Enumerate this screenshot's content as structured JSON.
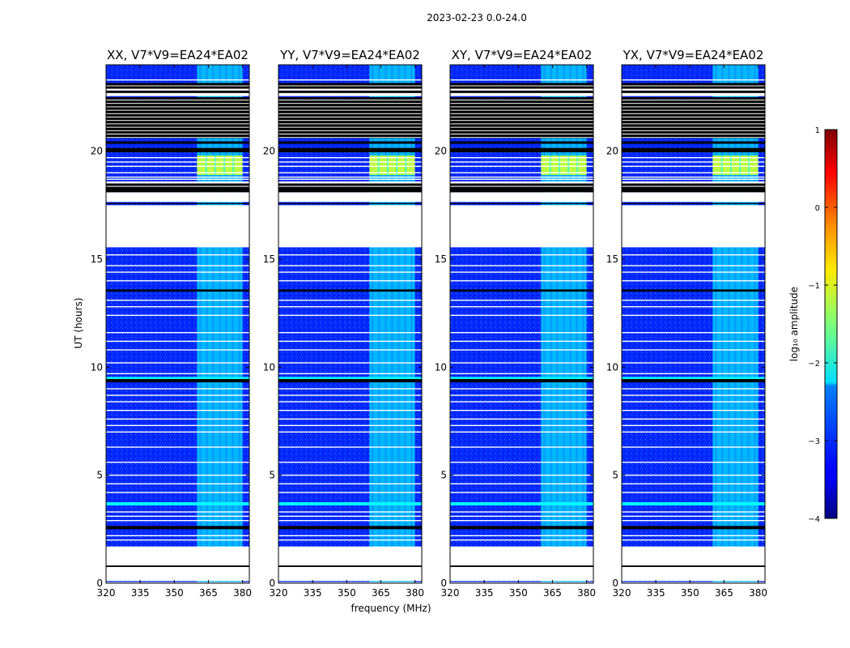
{
  "suptitle": "2023-02-23 0.0-24.0",
  "chart_data": {
    "type": "heatmap",
    "panels": [
      {
        "title": "XX, V7*V9=EA24*EA02"
      },
      {
        "title": "YY, V7*V9=EA24*EA02"
      },
      {
        "title": "XY, V7*V9=EA24*EA02"
      },
      {
        "title": "YX, V7*V9=EA24*EA02"
      }
    ],
    "xlabel": "frequency (MHz)",
    "ylabel": "UT (hours)",
    "xlim": [
      320,
      383
    ],
    "ylim": [
      0,
      24
    ],
    "xticks": [
      320,
      335,
      350,
      365,
      380
    ],
    "yticks": [
      0,
      5,
      10,
      15,
      20
    ],
    "colorbar": {
      "label": "log₁₀ amplitude",
      "range": [
        -4,
        1
      ],
      "ticks": [
        1,
        0,
        -1,
        -2,
        -3,
        -4
      ],
      "tick_labels": [
        "1",
        "0",
        "−1",
        "−2",
        "−3",
        "−4"
      ],
      "colormap": "jet"
    },
    "background_level": -3.2,
    "bright_band": {
      "freq_range": [
        360,
        380
      ],
      "level": -2.3
    },
    "bright_block": {
      "freq_range": [
        360,
        380
      ],
      "time_range": [
        18.9,
        19.8
      ],
      "level": -1.2
    },
    "flagged_white_ranges": [
      [
        0.0,
        0.05
      ],
      [
        0.1,
        1.7
      ],
      [
        15.55,
        17.5
      ],
      [
        17.65,
        18.1
      ],
      [
        18.35,
        18.6
      ],
      [
        22.55,
        23.05
      ]
    ],
    "black_bands": [
      [
        0.75,
        0.82
      ],
      [
        2.5,
        2.65
      ],
      [
        9.3,
        9.45
      ],
      [
        13.5,
        13.6
      ],
      [
        17.55,
        17.6
      ],
      [
        18.1,
        18.35
      ],
      [
        19.95,
        20.15
      ],
      [
        20.6,
        22.5
      ]
    ],
    "cyan_bands": [
      [
        3.6,
        3.75
      ],
      [
        9.45,
        9.55
      ]
    ]
  },
  "colors": {
    "axis": "#000000",
    "flagged": "#ffffff",
    "black_band": "#000000"
  }
}
